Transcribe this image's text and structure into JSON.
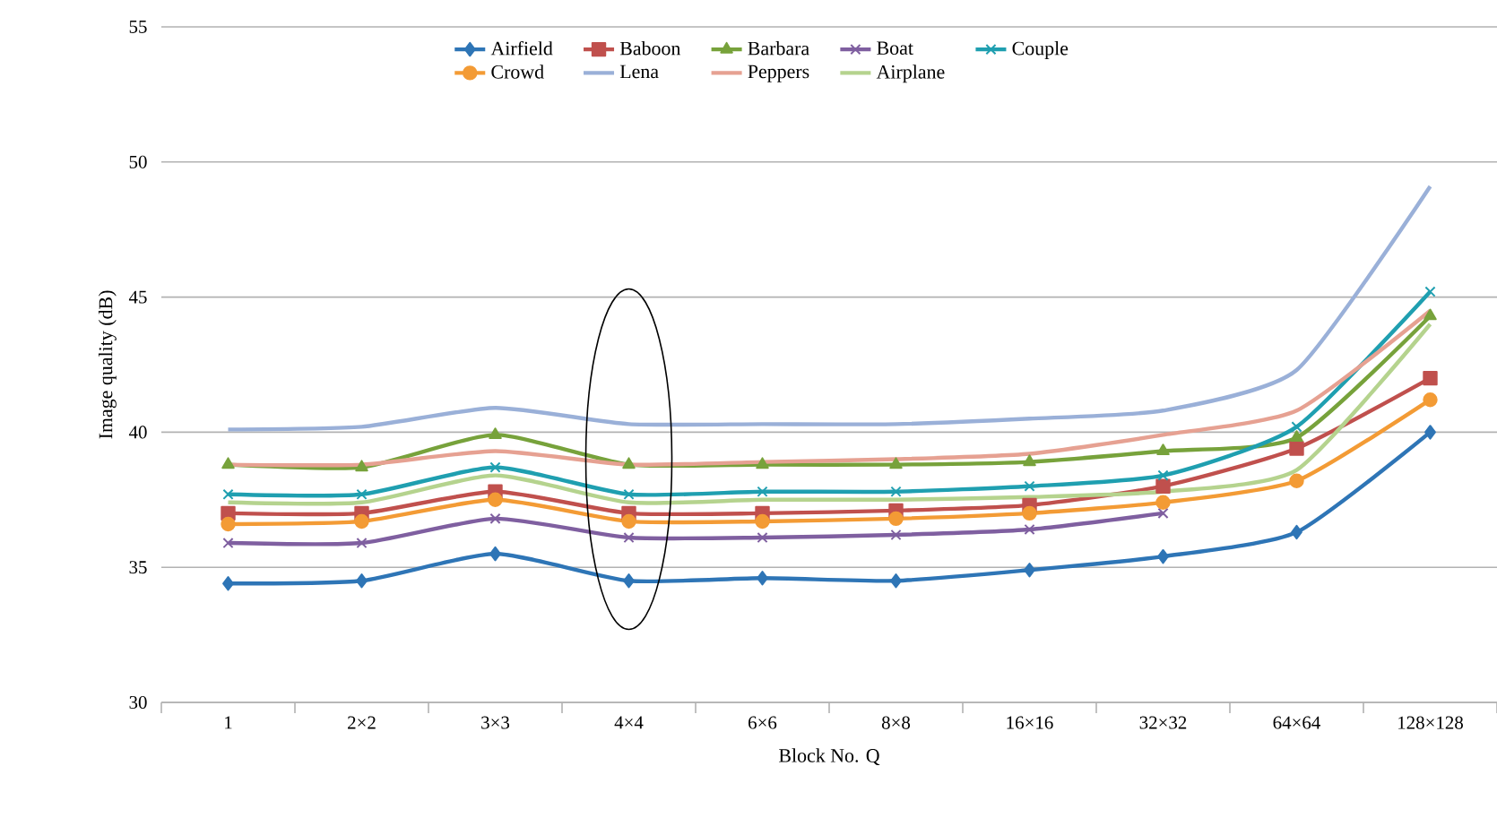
{
  "chart_data": {
    "type": "line",
    "xlabel": "Block No. Q",
    "ylabel": "Image quality (dB)",
    "categories": [
      "1",
      "2×2",
      "3×3",
      "4×4",
      "6×6",
      "8×8",
      "16×16",
      "32×32",
      "64×64",
      "128×128"
    ],
    "ylim": [
      30,
      55
    ],
    "yticks": [
      30,
      35,
      40,
      45,
      50,
      55
    ],
    "grid": "y",
    "legend": "top",
    "series": [
      {
        "name": "Airfield",
        "color": "#2e75b6",
        "marker": "diamond",
        "values": [
          34.4,
          34.5,
          35.5,
          34.5,
          34.6,
          34.5,
          34.9,
          35.4,
          36.3,
          40.0
        ]
      },
      {
        "name": "Baboon",
        "color": "#c0504d",
        "marker": "square",
        "values": [
          37.0,
          37.0,
          37.8,
          37.0,
          37.0,
          37.1,
          37.3,
          38.0,
          39.4,
          42.0
        ]
      },
      {
        "name": "Barbara",
        "color": "#77a23b",
        "marker": "triangle",
        "values": [
          38.8,
          38.7,
          39.9,
          38.8,
          38.8,
          38.8,
          38.9,
          39.3,
          39.8,
          44.3
        ]
      },
      {
        "name": "Boat",
        "color": "#7f5fa0",
        "marker": "cross",
        "values": [
          35.9,
          35.9,
          36.8,
          36.1,
          36.1,
          36.2,
          36.4,
          37.0,
          null,
          null
        ]
      },
      {
        "name": "Couple",
        "color": "#1f9fb0",
        "marker": "cross",
        "values": [
          37.7,
          37.7,
          38.7,
          37.7,
          37.8,
          37.8,
          38.0,
          38.4,
          40.2,
          45.2
        ]
      },
      {
        "name": "Crowd",
        "color": "#f39b35",
        "marker": "circle",
        "values": [
          36.6,
          36.7,
          37.5,
          36.7,
          36.7,
          36.8,
          37.0,
          37.4,
          38.2,
          41.2
        ]
      },
      {
        "name": "Lena",
        "color": "#9ab0d8",
        "marker": "none",
        "values": [
          40.1,
          40.2,
          40.9,
          40.3,
          40.3,
          40.3,
          40.5,
          40.8,
          42.3,
          49.1
        ]
      },
      {
        "name": "Peppers",
        "color": "#e6a192",
        "marker": "none",
        "values": [
          38.8,
          38.8,
          39.3,
          38.8,
          38.9,
          39.0,
          39.2,
          39.9,
          40.8,
          44.5
        ]
      },
      {
        "name": "Airplane",
        "color": "#b5d38e",
        "marker": "none",
        "values": [
          37.4,
          37.4,
          38.4,
          37.4,
          37.5,
          37.5,
          37.6,
          37.8,
          38.6,
          44.0
        ]
      }
    ]
  }
}
